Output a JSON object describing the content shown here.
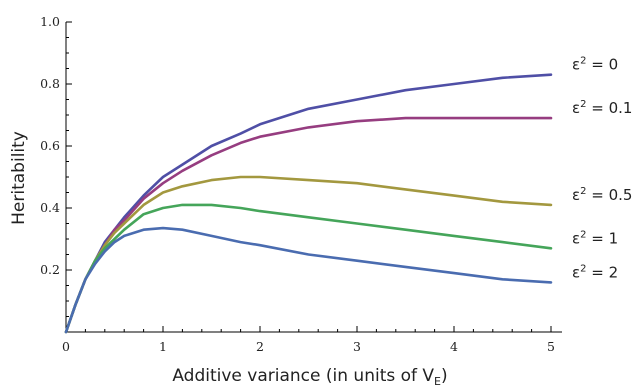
{
  "chart_data": {
    "type": "line",
    "title": "",
    "xlabel": "Additive variance (in units of V",
    "xlabel_sub": "E",
    "xlabel_end": ")",
    "ylabel": "Heritability",
    "xlim": [
      0,
      5
    ],
    "ylim": [
      0,
      1.0
    ],
    "x_ticks": [
      0,
      1,
      2,
      3,
      4,
      5
    ],
    "y_ticks": [
      0.2,
      0.4,
      0.6,
      0.8,
      1.0
    ],
    "x_tick_labels": [
      "0",
      "1",
      "2",
      "3",
      "4",
      "5"
    ],
    "y_tick_labels": [
      "0.2",
      "0.4",
      "0.6",
      "0.8",
      "1.0"
    ],
    "grid": false,
    "legend": "labels at right end of each series",
    "series": [
      {
        "name": "ε² = 0",
        "label_sym": "ε",
        "label_sup": "2",
        "label_rest": " = 0",
        "color": "#4f4fa6",
        "x": [
          0,
          0.1,
          0.2,
          0.3,
          0.4,
          0.5,
          0.6,
          0.8,
          1.0,
          1.2,
          1.5,
          1.8,
          2.0,
          2.5,
          3.0,
          3.5,
          4.0,
          4.5,
          5.0
        ],
        "y": [
          0,
          0.09,
          0.17,
          0.23,
          0.29,
          0.33,
          0.37,
          0.44,
          0.5,
          0.54,
          0.6,
          0.64,
          0.67,
          0.72,
          0.75,
          0.78,
          0.8,
          0.82,
          0.83
        ]
      },
      {
        "name": "ε² = 0.1",
        "label_sym": "ε",
        "label_sup": "2",
        "label_rest": " = 0.1",
        "color": "#963d80",
        "x": [
          0,
          0.1,
          0.2,
          0.3,
          0.4,
          0.5,
          0.6,
          0.8,
          1.0,
          1.2,
          1.5,
          1.8,
          2.0,
          2.5,
          3.0,
          3.5,
          4.0,
          4.5,
          5.0
        ],
        "y": [
          0,
          0.09,
          0.17,
          0.23,
          0.28,
          0.33,
          0.36,
          0.43,
          0.48,
          0.52,
          0.57,
          0.61,
          0.63,
          0.66,
          0.68,
          0.69,
          0.69,
          0.69,
          0.69
        ]
      },
      {
        "name": "ε² = 0.5",
        "label_sym": "ε",
        "label_sup": "2",
        "label_rest": " = 0.5",
        "color": "#a3983f",
        "x": [
          0,
          0.1,
          0.2,
          0.3,
          0.4,
          0.5,
          0.6,
          0.8,
          1.0,
          1.2,
          1.5,
          1.8,
          2.0,
          2.5,
          3.0,
          3.5,
          4.0,
          4.5,
          5.0
        ],
        "y": [
          0,
          0.09,
          0.17,
          0.23,
          0.28,
          0.32,
          0.35,
          0.41,
          0.45,
          0.47,
          0.49,
          0.5,
          0.5,
          0.49,
          0.48,
          0.46,
          0.44,
          0.42,
          0.41
        ]
      },
      {
        "name": "ε² = 1",
        "label_sym": "ε",
        "label_sup": "2",
        "label_rest": " = 1",
        "color": "#45a55a",
        "x": [
          0,
          0.1,
          0.2,
          0.3,
          0.4,
          0.5,
          0.6,
          0.8,
          1.0,
          1.2,
          1.5,
          1.8,
          2.0,
          2.5,
          3.0,
          3.5,
          4.0,
          4.5,
          5.0
        ],
        "y": [
          0,
          0.09,
          0.17,
          0.23,
          0.27,
          0.3,
          0.33,
          0.38,
          0.4,
          0.41,
          0.41,
          0.4,
          0.39,
          0.37,
          0.35,
          0.33,
          0.31,
          0.29,
          0.27
        ]
      },
      {
        "name": "ε² = 2",
        "label_sym": "ε",
        "label_sup": "2",
        "label_rest": " = 2",
        "color": "#4a6cb0",
        "x": [
          0,
          0.1,
          0.2,
          0.3,
          0.4,
          0.5,
          0.6,
          0.8,
          1.0,
          1.2,
          1.5,
          1.8,
          2.0,
          2.5,
          3.0,
          3.5,
          4.0,
          4.5,
          5.0
        ],
        "y": [
          0,
          0.09,
          0.17,
          0.22,
          0.26,
          0.29,
          0.31,
          0.33,
          0.335,
          0.33,
          0.31,
          0.29,
          0.28,
          0.25,
          0.23,
          0.21,
          0.19,
          0.17,
          0.16
        ]
      }
    ]
  }
}
